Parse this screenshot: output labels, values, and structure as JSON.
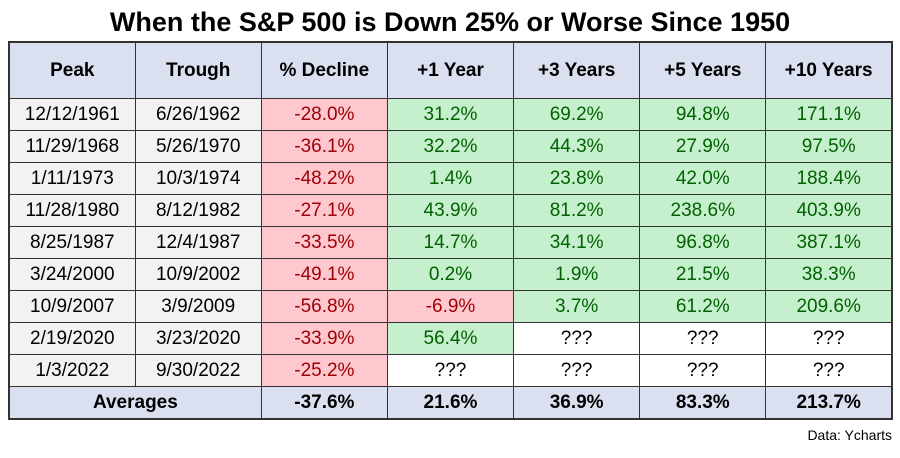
{
  "chart_data": {
    "type": "table",
    "title": "When the S&P 500 is Down 25% or Worse Since 1950",
    "source": "Data: Ycharts",
    "columns": [
      "Peak",
      "Trough",
      "% Decline",
      "+1 Year",
      "+3 Years",
      "+5 Years",
      "+10 Years"
    ],
    "rows": [
      {
        "peak": "12/12/1961",
        "trough": "6/26/1962",
        "decline": "-28.0%",
        "returns": [
          "31.2%",
          "69.2%",
          "94.8%",
          "171.1%"
        ]
      },
      {
        "peak": "11/29/1968",
        "trough": "5/26/1970",
        "decline": "-36.1%",
        "returns": [
          "32.2%",
          "44.3%",
          "27.9%",
          "97.5%"
        ]
      },
      {
        "peak": "1/11/1973",
        "trough": "10/3/1974",
        "decline": "-48.2%",
        "returns": [
          "1.4%",
          "23.8%",
          "42.0%",
          "188.4%"
        ]
      },
      {
        "peak": "11/28/1980",
        "trough": "8/12/1982",
        "decline": "-27.1%",
        "returns": [
          "43.9%",
          "81.2%",
          "238.6%",
          "403.9%"
        ]
      },
      {
        "peak": "8/25/1987",
        "trough": "12/4/1987",
        "decline": "-33.5%",
        "returns": [
          "14.7%",
          "34.1%",
          "96.8%",
          "387.1%"
        ]
      },
      {
        "peak": "3/24/2000",
        "trough": "10/9/2002",
        "decline": "-49.1%",
        "returns": [
          "0.2%",
          "1.9%",
          "21.5%",
          "38.3%"
        ]
      },
      {
        "peak": "10/9/2007",
        "trough": "3/9/2009",
        "decline": "-56.8%",
        "returns": [
          "-6.9%",
          "3.7%",
          "61.2%",
          "209.6%"
        ]
      },
      {
        "peak": "2/19/2020",
        "trough": "3/23/2020",
        "decline": "-33.9%",
        "returns": [
          "56.4%",
          "???",
          "???",
          "???"
        ]
      },
      {
        "peak": "1/3/2022",
        "trough": "9/30/2022",
        "decline": "-25.2%",
        "returns": [
          "???",
          "???",
          "???",
          "???"
        ]
      }
    ],
    "averages": {
      "label": "Averages",
      "decline": "-37.6%",
      "returns": [
        "21.6%",
        "36.9%",
        "83.3%",
        "213.7%"
      ]
    },
    "unknown_marker": "???",
    "layout": {
      "legend": "none",
      "grid": "all-borders"
    },
    "colors": {
      "header_bg": "#dbe0f1",
      "date_bg": "#f2f2f2",
      "negative_bg": "#ffc7ce",
      "negative_text": "#9c0006",
      "positive_bg": "#c6efce",
      "positive_text": "#006100",
      "border": "#333333"
    }
  }
}
